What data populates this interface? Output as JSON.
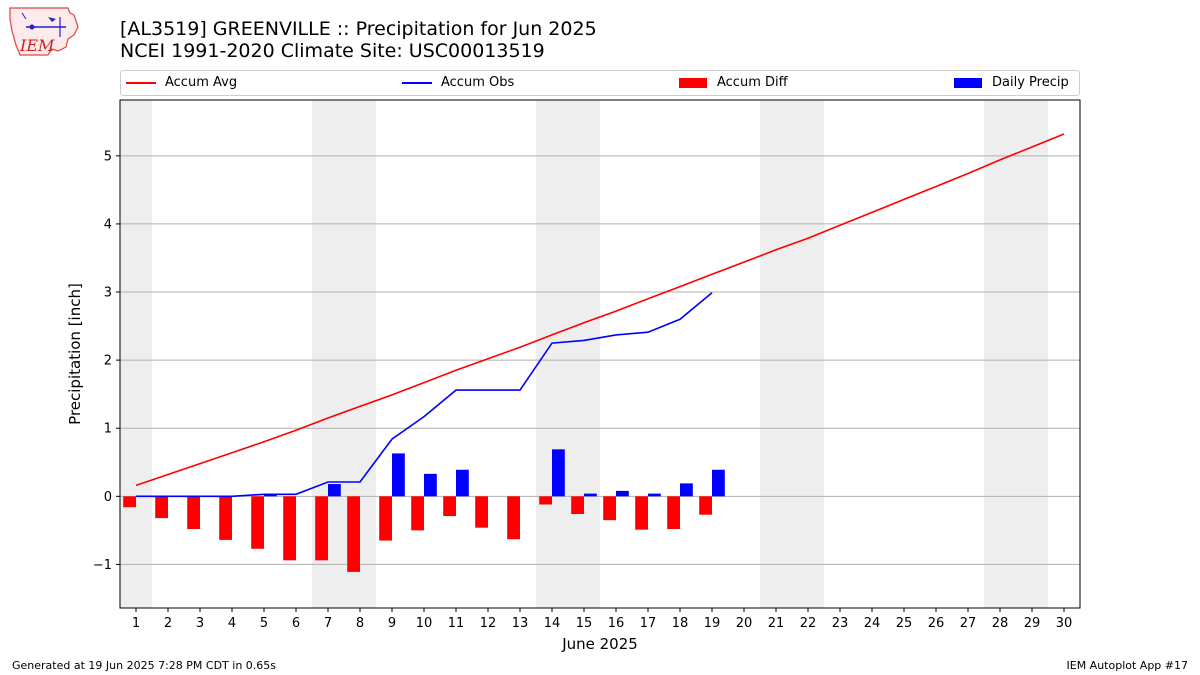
{
  "header": {
    "title_line1": "[AL3519] GREENVILLE :: Precipitation for Jun 2025",
    "title_line2": "NCEI 1991-2020 Climate Site: USC00013519",
    "logo_text": "IEM"
  },
  "legend": {
    "items": [
      {
        "label": "Accum Avg",
        "color": "#ff0000",
        "kind": "line"
      },
      {
        "label": "Accum Obs",
        "color": "#0000ff",
        "kind": "line"
      },
      {
        "label": "Accum Diff",
        "color": "#ff0000",
        "kind": "bar"
      },
      {
        "label": "Daily Precip",
        "color": "#0000ff",
        "kind": "bar"
      }
    ]
  },
  "footer": {
    "left": "Generated at 19 Jun 2025 7:28 PM CDT in 0.65s",
    "right": "IEM Autoplot App #17"
  },
  "chart_data": {
    "type": "bar",
    "xlabel": "June 2025",
    "ylabel": "Precipitation [inch]",
    "x": [
      1,
      2,
      3,
      4,
      5,
      6,
      7,
      8,
      9,
      10,
      11,
      12,
      13,
      14,
      15,
      16,
      17,
      18,
      19,
      20,
      21,
      22,
      23,
      24,
      25,
      26,
      27,
      28,
      29,
      30
    ],
    "x_ticks": [
      "1",
      "2",
      "3",
      "4",
      "5",
      "6",
      "7",
      "8",
      "9",
      "10",
      "11",
      "12",
      "13",
      "14",
      "15",
      "16",
      "17",
      "18",
      "19",
      "20",
      "21",
      "22",
      "23",
      "24",
      "25",
      "26",
      "27",
      "28",
      "29",
      "30"
    ],
    "xlim": [
      0.5,
      30.5
    ],
    "ylim": [
      -1.64,
      5.82
    ],
    "y_ticks": [
      -1,
      0,
      1,
      2,
      3,
      4,
      5
    ],
    "y_tick_labels": [
      "−1",
      "0",
      "1",
      "2",
      "3",
      "4",
      "5"
    ],
    "grid": "horizontal",
    "weekend_shading": [
      [
        0.5,
        1.5
      ],
      [
        6.5,
        8.5
      ],
      [
        13.5,
        15.5
      ],
      [
        20.5,
        22.5
      ],
      [
        27.5,
        29.5
      ]
    ],
    "series": [
      {
        "name": "Accum Avg",
        "type": "line",
        "color": "#ff0000",
        "x": [
          1,
          2,
          3,
          4,
          5,
          6,
          7,
          8,
          9,
          10,
          11,
          12,
          13,
          14,
          15,
          16,
          17,
          18,
          19,
          20,
          21,
          22,
          23,
          24,
          25,
          26,
          27,
          28,
          29,
          30
        ],
        "values": [
          0.16,
          0.32,
          0.48,
          0.64,
          0.8,
          0.97,
          1.15,
          1.32,
          1.49,
          1.67,
          1.85,
          2.02,
          2.19,
          2.37,
          2.55,
          2.72,
          2.9,
          3.08,
          3.26,
          3.44,
          3.62,
          3.79,
          3.98,
          4.17,
          4.36,
          4.55,
          4.74,
          4.94,
          5.13,
          5.32
        ]
      },
      {
        "name": "Accum Obs",
        "type": "line",
        "color": "#0000ff",
        "x": [
          1,
          2,
          3,
          4,
          5,
          6,
          7,
          8,
          9,
          10,
          11,
          12,
          13,
          14,
          15,
          16,
          17,
          18,
          19
        ],
        "values": [
          0.0,
          0.0,
          0.0,
          0.0,
          0.03,
          0.03,
          0.21,
          0.21,
          0.84,
          1.17,
          1.56,
          1.56,
          1.56,
          2.25,
          2.29,
          2.37,
          2.41,
          2.6,
          2.99
        ]
      },
      {
        "name": "Accum Diff",
        "type": "bar",
        "color": "#ff0000",
        "offset": -0.2,
        "x": [
          1,
          2,
          3,
          4,
          5,
          6,
          7,
          8,
          9,
          10,
          11,
          12,
          13,
          14,
          15,
          16,
          17,
          18,
          19
        ],
        "values": [
          -0.16,
          -0.32,
          -0.48,
          -0.64,
          -0.77,
          -0.94,
          -0.94,
          -1.11,
          -0.65,
          -0.5,
          -0.29,
          -0.46,
          -0.63,
          -0.12,
          -0.26,
          -0.35,
          -0.49,
          -0.48,
          -0.27
        ]
      },
      {
        "name": "Daily Precip",
        "type": "bar",
        "color": "#0000ff",
        "offset": 0.2,
        "x": [
          1,
          2,
          3,
          4,
          5,
          6,
          7,
          8,
          9,
          10,
          11,
          12,
          13,
          14,
          15,
          16,
          17,
          18,
          19
        ],
        "values": [
          0.0,
          0.0,
          0.0,
          0.0,
          0.03,
          0.0,
          0.18,
          0.0,
          0.63,
          0.33,
          0.39,
          0.0,
          0.0,
          0.69,
          0.04,
          0.08,
          0.04,
          0.19,
          0.39
        ]
      }
    ]
  }
}
